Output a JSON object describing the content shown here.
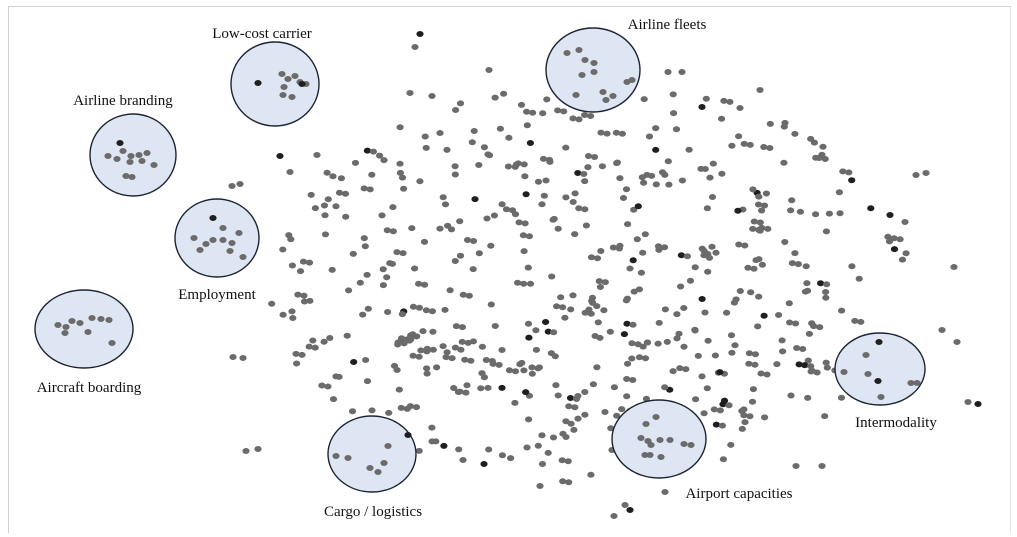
{
  "chart_data": {
    "type": "scatter",
    "title": "",
    "xlabel": "",
    "ylabel": "",
    "grid": false,
    "colors": {
      "point": "#6b6b6b",
      "point_dark": "#1f1f1f",
      "cluster_fill": "#dfe6f3",
      "cluster_stroke": "#1c2433"
    },
    "clusters": [
      {
        "name": "Low-cost carrier"
      },
      {
        "name": "Airline fleets"
      },
      {
        "name": "Airline branding"
      },
      {
        "name": "Employment"
      },
      {
        "name": "Aircraft boarding"
      },
      {
        "name": "Intermodality"
      },
      {
        "name": "Cargo / logistics"
      },
      {
        "name": "Airport capacities"
      }
    ]
  }
}
